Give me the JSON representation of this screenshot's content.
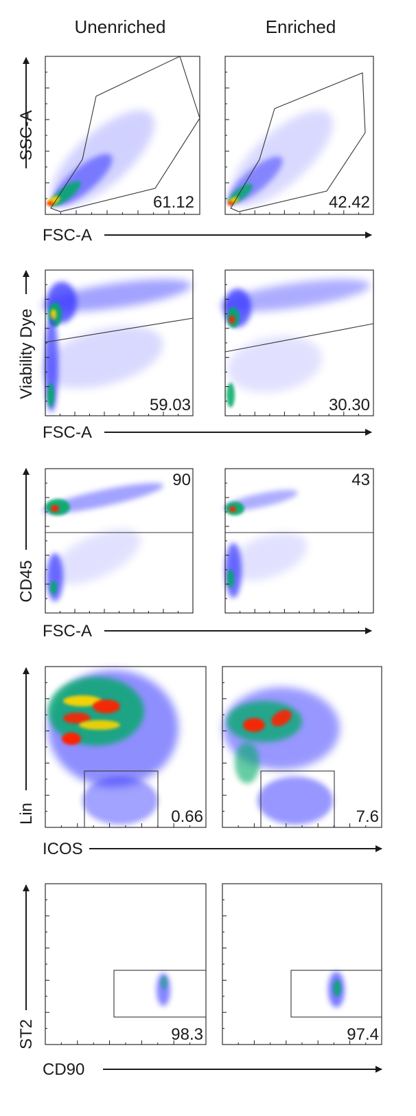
{
  "column_headers": [
    "Unenriched",
    "Enriched"
  ],
  "colors": {
    "density_low": "#3333ff",
    "density_mid": "#00aa66",
    "density_high": "#ffd400",
    "density_peak": "#ff2200",
    "gate_line": "#333333",
    "axis": "#1a1a1a"
  },
  "chart_data": [
    {
      "type": "scatter",
      "title": "",
      "xlabel": "FSC-A",
      "ylabel": "SSC-A",
      "panels": [
        {
          "column": "Unenriched",
          "gate_percent": "61.12",
          "gate_shape": "polygon"
        },
        {
          "column": "Enriched",
          "gate_percent": "42.42",
          "gate_shape": "polygon"
        }
      ]
    },
    {
      "type": "scatter",
      "title": "",
      "xlabel": "FSC-A",
      "ylabel": "Viability Dye",
      "panels": [
        {
          "column": "Unenriched",
          "gate_percent": "59.03",
          "gate_shape": "lower region below sloped line"
        },
        {
          "column": "Enriched",
          "gate_percent": "30.30",
          "gate_shape": "lower region below sloped line"
        }
      ]
    },
    {
      "type": "scatter",
      "title": "",
      "xlabel": "FSC-A",
      "ylabel": "CD45",
      "panels": [
        {
          "column": "Unenriched",
          "gate_percent": "90",
          "gate_shape": "upper region above horizontal line"
        },
        {
          "column": "Enriched",
          "gate_percent": "43",
          "gate_shape": "upper region above horizontal line"
        }
      ]
    },
    {
      "type": "scatter",
      "title": "",
      "xlabel": "ICOS",
      "ylabel": "Lin",
      "panels": [
        {
          "column": "Unenriched",
          "gate_percent": "0.66",
          "gate_shape": "rectangle"
        },
        {
          "column": "Enriched",
          "gate_percent": "7.6",
          "gate_shape": "rectangle"
        }
      ]
    },
    {
      "type": "scatter",
      "title": "",
      "xlabel": "CD90",
      "ylabel": "ST2",
      "panels": [
        {
          "column": "Unenriched",
          "gate_percent": "98.3",
          "gate_shape": "rectangle"
        },
        {
          "column": "Enriched",
          "gate_percent": "97.4",
          "gate_shape": "rectangle"
        }
      ]
    }
  ]
}
